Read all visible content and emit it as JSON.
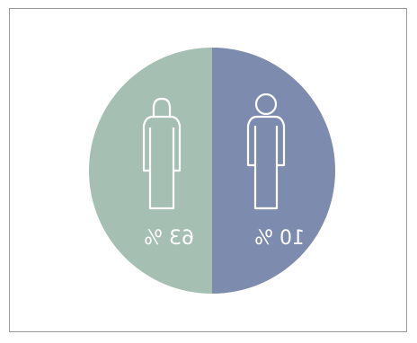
{
  "chart_data": {
    "type": "pie",
    "slices": [
      {
        "label": "10 %",
        "value": 50,
        "color": "#7d8bae"
      },
      {
        "label": "63 %",
        "value": 50,
        "color": "#a5bfb2"
      }
    ]
  },
  "colors": {
    "frame_border": "#9a9a9a",
    "icon_stroke": "#ffffff"
  },
  "icons": {
    "left": "person-icon-head-round",
    "right": "person-icon-head-rounded-rect"
  }
}
